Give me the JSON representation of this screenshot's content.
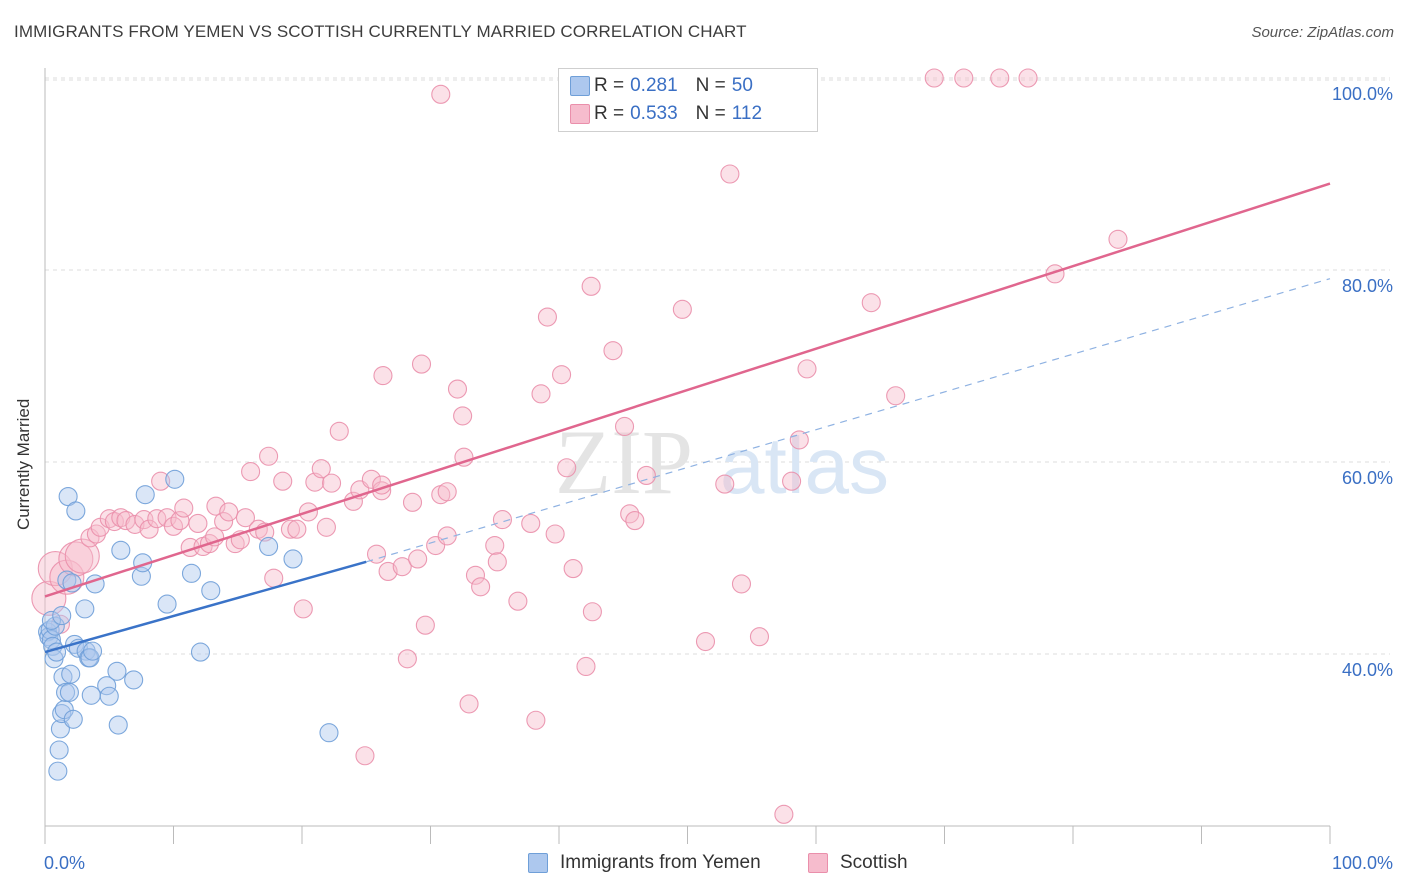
{
  "title": "IMMIGRANTS FROM YEMEN VS SCOTTISH CURRENTLY MARRIED CORRELATION CHART",
  "source": "Source: ZipAtlas.com",
  "legend": {
    "r_label": "R =",
    "n_label": "N =",
    "series": [
      {
        "name": "Immigrants from Yemen",
        "r": "0.281",
        "n": "50",
        "fill": "#adc8ee",
        "stroke": "#6f9fd8"
      },
      {
        "name": "Scottish",
        "r": "0.533",
        "n": "112",
        "fill": "#f6bccd",
        "stroke": "#ea8fab"
      }
    ]
  },
  "watermark": {
    "zip": "ZIP",
    "atlas": "atlas"
  },
  "chart_data": {
    "type": "scatter",
    "title": "IMMIGRANTS FROM YEMEN VS SCOTTISH CURRENTLY MARRIED CORRELATION CHART",
    "xlabel": "",
    "ylabel": "Currently Married",
    "xlim": [
      0,
      100
    ],
    "ylim": [
      20,
      102
    ],
    "x_tick_labels": [
      "0.0%",
      "100.0%"
    ],
    "y_tick_labels": [
      "40.0%",
      "60.0%",
      "80.0%",
      "100.0%"
    ],
    "y_ticks": [
      40,
      60,
      80,
      100
    ],
    "grid": true,
    "legend_position": "top-center",
    "series": [
      {
        "name": "Immigrants from Yemen",
        "color": "#6f9fd8",
        "trend": {
          "x": [
            0,
            25
          ],
          "y": [
            40.2,
            49.6
          ],
          "dashed_extension_to": [
            100,
            79.1
          ]
        },
        "points": [
          [
            0.2,
            42.3
          ],
          [
            0.3,
            41.8
          ],
          [
            0.4,
            42.5
          ],
          [
            0.5,
            41.5
          ],
          [
            0.6,
            40.8
          ],
          [
            0.7,
            39.5
          ],
          [
            0.8,
            42.9
          ],
          [
            0.9,
            40.2
          ],
          [
            1.0,
            27.8
          ],
          [
            1.1,
            30.0
          ],
          [
            1.2,
            32.2
          ],
          [
            1.3,
            33.8
          ],
          [
            1.4,
            37.6
          ],
          [
            1.5,
            34.2
          ],
          [
            1.6,
            36.0
          ],
          [
            1.7,
            47.7
          ],
          [
            1.8,
            56.4
          ],
          [
            1.9,
            36.0
          ],
          [
            2.0,
            37.9
          ],
          [
            2.1,
            47.4
          ],
          [
            2.2,
            33.2
          ],
          [
            2.3,
            41.0
          ],
          [
            2.4,
            54.9
          ],
          [
            2.6,
            40.6
          ],
          [
            3.1,
            44.7
          ],
          [
            3.2,
            40.3
          ],
          [
            3.4,
            39.6
          ],
          [
            3.5,
            39.6
          ],
          [
            3.6,
            35.7
          ],
          [
            3.7,
            40.3
          ],
          [
            3.9,
            47.3
          ],
          [
            4.8,
            36.7
          ],
          [
            5.0,
            35.6
          ],
          [
            5.6,
            38.2
          ],
          [
            5.7,
            32.6
          ],
          [
            5.9,
            50.8
          ],
          [
            6.9,
            37.3
          ],
          [
            7.5,
            48.1
          ],
          [
            7.6,
            49.5
          ],
          [
            7.8,
            56.6
          ],
          [
            9.5,
            45.2
          ],
          [
            10.1,
            58.2
          ],
          [
            11.4,
            48.4
          ],
          [
            12.1,
            40.2
          ],
          [
            12.9,
            46.6
          ],
          [
            17.4,
            51.2
          ],
          [
            19.3,
            49.9
          ],
          [
            22.1,
            31.8
          ],
          [
            0.5,
            43.5
          ],
          [
            1.3,
            44.0
          ]
        ]
      },
      {
        "name": "Scottish",
        "color": "#ea8fab",
        "trend": {
          "x": [
            0,
            100
          ],
          "y": [
            46.0,
            89.0
          ]
        },
        "points": [
          [
            0.3,
            45.8
          ],
          [
            0.8,
            48.9
          ],
          [
            1.2,
            43.1
          ],
          [
            1.7,
            48.0
          ],
          [
            2.4,
            49.9
          ],
          [
            2.9,
            50.2
          ],
          [
            3.5,
            52.1
          ],
          [
            4.0,
            52.5
          ],
          [
            4.3,
            53.2
          ],
          [
            5.0,
            54.1
          ],
          [
            5.4,
            53.8
          ],
          [
            5.9,
            54.2
          ],
          [
            6.3,
            53.9
          ],
          [
            7.0,
            53.5
          ],
          [
            7.7,
            54.0
          ],
          [
            8.1,
            53.0
          ],
          [
            8.7,
            54.1
          ],
          [
            9.0,
            58.0
          ],
          [
            9.5,
            54.2
          ],
          [
            10.0,
            53.3
          ],
          [
            10.5,
            53.9
          ],
          [
            10.8,
            55.2
          ],
          [
            11.3,
            51.1
          ],
          [
            11.9,
            53.6
          ],
          [
            12.3,
            51.2
          ],
          [
            12.8,
            51.5
          ],
          [
            13.2,
            52.2
          ],
          [
            13.3,
            55.4
          ],
          [
            13.9,
            53.8
          ],
          [
            14.3,
            54.8
          ],
          [
            14.8,
            51.5
          ],
          [
            15.2,
            51.9
          ],
          [
            15.6,
            54.2
          ],
          [
            16.0,
            59.0
          ],
          [
            16.6,
            53.0
          ],
          [
            17.1,
            52.7
          ],
          [
            17.4,
            60.6
          ],
          [
            17.8,
            47.9
          ],
          [
            18.5,
            58.0
          ],
          [
            19.1,
            53.0
          ],
          [
            19.6,
            53.0
          ],
          [
            20.1,
            44.7
          ],
          [
            20.5,
            54.8
          ],
          [
            21.0,
            57.9
          ],
          [
            21.5,
            59.3
          ],
          [
            21.9,
            53.2
          ],
          [
            22.9,
            63.2
          ],
          [
            22.3,
            57.8
          ],
          [
            24.0,
            55.9
          ],
          [
            24.5,
            57.1
          ],
          [
            24.9,
            29.4
          ],
          [
            25.4,
            58.2
          ],
          [
            25.8,
            50.4
          ],
          [
            26.2,
            57.0
          ],
          [
            26.2,
            57.6
          ],
          [
            26.7,
            48.6
          ],
          [
            26.3,
            69.0
          ],
          [
            27.8,
            49.1
          ],
          [
            28.2,
            39.5
          ],
          [
            28.6,
            55.8
          ],
          [
            29.3,
            70.2
          ],
          [
            29.0,
            49.9
          ],
          [
            29.6,
            43.0
          ],
          [
            30.4,
            51.3
          ],
          [
            30.8,
            56.6
          ],
          [
            31.3,
            56.9
          ],
          [
            31.3,
            52.3
          ],
          [
            32.1,
            67.6
          ],
          [
            32.6,
            60.5
          ],
          [
            32.5,
            64.8
          ],
          [
            33.0,
            34.8
          ],
          [
            33.5,
            48.2
          ],
          [
            33.9,
            47.0
          ],
          [
            35.0,
            51.3
          ],
          [
            35.6,
            54.0
          ],
          [
            35.2,
            49.6
          ],
          [
            36.8,
            45.5
          ],
          [
            37.8,
            53.6
          ],
          [
            38.2,
            33.1
          ],
          [
            38.6,
            67.1
          ],
          [
            39.1,
            75.1
          ],
          [
            39.7,
            52.5
          ],
          [
            40.2,
            69.1
          ],
          [
            40.6,
            59.4
          ],
          [
            41.1,
            48.9
          ],
          [
            42.5,
            78.3
          ],
          [
            42.1,
            38.7
          ],
          [
            42.6,
            44.4
          ],
          [
            44.2,
            71.6
          ],
          [
            45.1,
            63.7
          ],
          [
            45.5,
            54.6
          ],
          [
            45.9,
            53.9
          ],
          [
            46.8,
            58.6
          ],
          [
            49.6,
            75.9
          ],
          [
            51.4,
            41.3
          ],
          [
            52.9,
            57.7
          ],
          [
            53.3,
            90.0
          ],
          [
            54.2,
            47.3
          ],
          [
            55.6,
            41.8
          ],
          [
            58.1,
            58.0
          ],
          [
            58.7,
            62.3
          ],
          [
            59.3,
            69.7
          ],
          [
            64.3,
            76.6
          ],
          [
            66.2,
            66.9
          ],
          [
            69.2,
            100.0
          ],
          [
            71.5,
            100.0
          ],
          [
            74.3,
            100.0
          ],
          [
            76.5,
            100.0
          ],
          [
            78.6,
            79.6
          ],
          [
            83.5,
            83.2
          ],
          [
            57.5,
            23.3
          ],
          [
            30.8,
            98.3
          ]
        ]
      }
    ]
  }
}
